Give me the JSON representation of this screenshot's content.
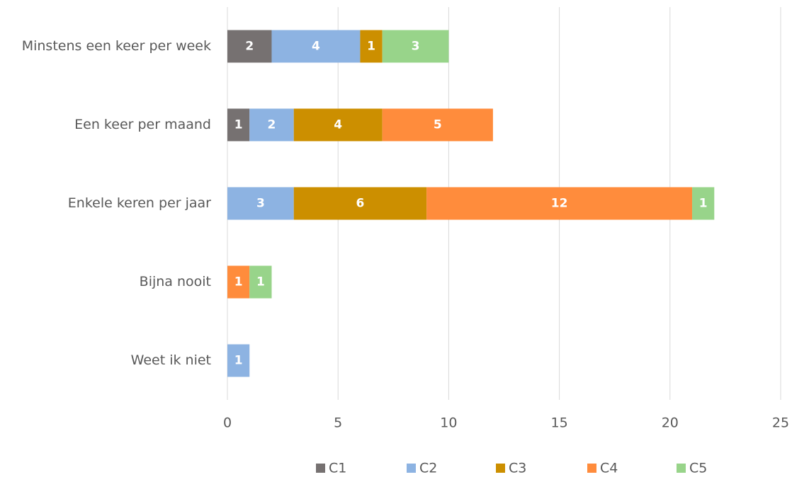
{
  "chart_data": {
    "type": "stacked-barh",
    "categories": [
      "Minstens een keer per week",
      "Een keer per maand",
      "Enkele keren per jaar",
      "Bijna nooit",
      "Weet ik niet"
    ],
    "series": [
      {
        "name": "C1",
        "color": "#767171",
        "values": [
          2,
          1,
          null,
          null,
          null
        ]
      },
      {
        "name": "C2",
        "color": "#8db3e2",
        "values": [
          4,
          2,
          3,
          null,
          1
        ]
      },
      {
        "name": "C3",
        "color": "#cc8f00",
        "values": [
          1,
          4,
          6,
          null,
          null
        ]
      },
      {
        "name": "C4",
        "color": "#ff8c3c",
        "values": [
          null,
          5,
          12,
          1,
          null
        ]
      },
      {
        "name": "C5",
        "color": "#98d48a",
        "values": [
          3,
          null,
          1,
          1,
          null
        ]
      }
    ],
    "xlim": [
      0,
      25
    ],
    "xticks": [
      0,
      5,
      10,
      15,
      20,
      25
    ],
    "grid": true,
    "legend": "bottom"
  }
}
